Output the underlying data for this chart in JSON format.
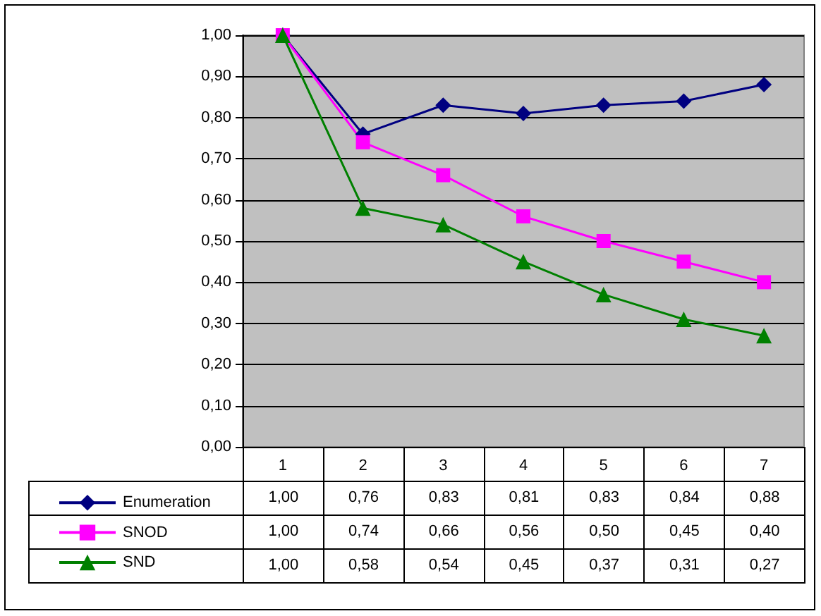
{
  "chart_data": {
    "type": "line",
    "categories": [
      "1",
      "2",
      "3",
      "4",
      "5",
      "6",
      "7"
    ],
    "series": [
      {
        "name": "Enumeration",
        "color": "#000080",
        "marker": "diamond",
        "values": [
          1.0,
          0.76,
          0.83,
          0.81,
          0.83,
          0.84,
          0.88
        ],
        "value_labels": [
          "1,00",
          "0,76",
          "0,83",
          "0,81",
          "0,83",
          "0,84",
          "0,88"
        ]
      },
      {
        "name": "SNOD",
        "color": "#ff00ff",
        "marker": "square",
        "values": [
          1.0,
          0.74,
          0.66,
          0.56,
          0.5,
          0.45,
          0.4
        ],
        "value_labels": [
          "1,00",
          "0,74",
          "0,66",
          "0,56",
          "0,50",
          "0,45",
          "0,40"
        ]
      },
      {
        "name": "SND",
        "color": "#008000",
        "marker": "triangle",
        "values": [
          1.0,
          0.58,
          0.54,
          0.45,
          0.37,
          0.31,
          0.27
        ],
        "value_labels": [
          "1,00",
          "0,58",
          "0,54",
          "0,45",
          "0,37",
          "0,31",
          "0,27"
        ]
      }
    ],
    "ylim": [
      0,
      1
    ],
    "yticks": [
      {
        "value": 0,
        "label": "0,00"
      },
      {
        "value": 0.1,
        "label": "0,10"
      },
      {
        "value": 0.2,
        "label": "0,20"
      },
      {
        "value": 0.3,
        "label": "0,30"
      },
      {
        "value": 0.4,
        "label": "0,40"
      },
      {
        "value": 0.5,
        "label": "0,50"
      },
      {
        "value": 0.6,
        "label": "0,60"
      },
      {
        "value": 0.7,
        "label": "0,70"
      },
      {
        "value": 0.8,
        "label": "0,80"
      },
      {
        "value": 0.9,
        "label": "0,90"
      },
      {
        "value": 1,
        "label": "1,00"
      }
    ],
    "grid": "y",
    "legend": "bottom"
  }
}
